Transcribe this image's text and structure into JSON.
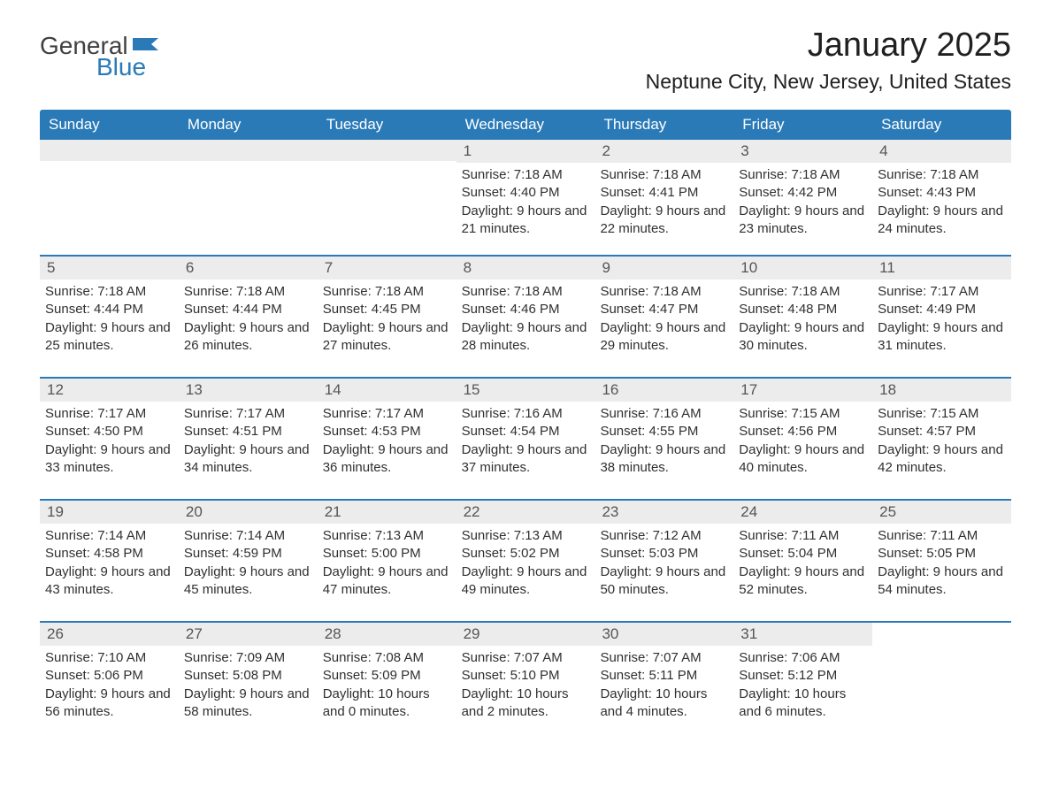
{
  "brand": {
    "word1": "General",
    "word2": "Blue",
    "text_color": "#404040",
    "accent_color": "#2a7ab8"
  },
  "title": "January 2025",
  "location": "Neptune City, New Jersey, United States",
  "colors": {
    "header_bg": "#2a7ab8",
    "header_text": "#ffffff",
    "strip_bg": "#ececec",
    "body_text": "#303030",
    "page_bg": "#ffffff",
    "rule": "#2a7ab8"
  },
  "typography": {
    "title_fontsize": 38,
    "location_fontsize": 23,
    "dayheader_fontsize": 17,
    "daynum_fontsize": 17,
    "detail_fontsize": 15
  },
  "calendar": {
    "day_headers": [
      "Sunday",
      "Monday",
      "Tuesday",
      "Wednesday",
      "Thursday",
      "Friday",
      "Saturday"
    ],
    "weeks": [
      [
        null,
        null,
        null,
        {
          "num": "1",
          "sunrise": "Sunrise: 7:18 AM",
          "sunset": "Sunset: 4:40 PM",
          "daylight": "Daylight: 9 hours and 21 minutes."
        },
        {
          "num": "2",
          "sunrise": "Sunrise: 7:18 AM",
          "sunset": "Sunset: 4:41 PM",
          "daylight": "Daylight: 9 hours and 22 minutes."
        },
        {
          "num": "3",
          "sunrise": "Sunrise: 7:18 AM",
          "sunset": "Sunset: 4:42 PM",
          "daylight": "Daylight: 9 hours and 23 minutes."
        },
        {
          "num": "4",
          "sunrise": "Sunrise: 7:18 AM",
          "sunset": "Sunset: 4:43 PM",
          "daylight": "Daylight: 9 hours and 24 minutes."
        }
      ],
      [
        {
          "num": "5",
          "sunrise": "Sunrise: 7:18 AM",
          "sunset": "Sunset: 4:44 PM",
          "daylight": "Daylight: 9 hours and 25 minutes."
        },
        {
          "num": "6",
          "sunrise": "Sunrise: 7:18 AM",
          "sunset": "Sunset: 4:44 PM",
          "daylight": "Daylight: 9 hours and 26 minutes."
        },
        {
          "num": "7",
          "sunrise": "Sunrise: 7:18 AM",
          "sunset": "Sunset: 4:45 PM",
          "daylight": "Daylight: 9 hours and 27 minutes."
        },
        {
          "num": "8",
          "sunrise": "Sunrise: 7:18 AM",
          "sunset": "Sunset: 4:46 PM",
          "daylight": "Daylight: 9 hours and 28 minutes."
        },
        {
          "num": "9",
          "sunrise": "Sunrise: 7:18 AM",
          "sunset": "Sunset: 4:47 PM",
          "daylight": "Daylight: 9 hours and 29 minutes."
        },
        {
          "num": "10",
          "sunrise": "Sunrise: 7:18 AM",
          "sunset": "Sunset: 4:48 PM",
          "daylight": "Daylight: 9 hours and 30 minutes."
        },
        {
          "num": "11",
          "sunrise": "Sunrise: 7:17 AM",
          "sunset": "Sunset: 4:49 PM",
          "daylight": "Daylight: 9 hours and 31 minutes."
        }
      ],
      [
        {
          "num": "12",
          "sunrise": "Sunrise: 7:17 AM",
          "sunset": "Sunset: 4:50 PM",
          "daylight": "Daylight: 9 hours and 33 minutes."
        },
        {
          "num": "13",
          "sunrise": "Sunrise: 7:17 AM",
          "sunset": "Sunset: 4:51 PM",
          "daylight": "Daylight: 9 hours and 34 minutes."
        },
        {
          "num": "14",
          "sunrise": "Sunrise: 7:17 AM",
          "sunset": "Sunset: 4:53 PM",
          "daylight": "Daylight: 9 hours and 36 minutes."
        },
        {
          "num": "15",
          "sunrise": "Sunrise: 7:16 AM",
          "sunset": "Sunset: 4:54 PM",
          "daylight": "Daylight: 9 hours and 37 minutes."
        },
        {
          "num": "16",
          "sunrise": "Sunrise: 7:16 AM",
          "sunset": "Sunset: 4:55 PM",
          "daylight": "Daylight: 9 hours and 38 minutes."
        },
        {
          "num": "17",
          "sunrise": "Sunrise: 7:15 AM",
          "sunset": "Sunset: 4:56 PM",
          "daylight": "Daylight: 9 hours and 40 minutes."
        },
        {
          "num": "18",
          "sunrise": "Sunrise: 7:15 AM",
          "sunset": "Sunset: 4:57 PM",
          "daylight": "Daylight: 9 hours and 42 minutes."
        }
      ],
      [
        {
          "num": "19",
          "sunrise": "Sunrise: 7:14 AM",
          "sunset": "Sunset: 4:58 PM",
          "daylight": "Daylight: 9 hours and 43 minutes."
        },
        {
          "num": "20",
          "sunrise": "Sunrise: 7:14 AM",
          "sunset": "Sunset: 4:59 PM",
          "daylight": "Daylight: 9 hours and 45 minutes."
        },
        {
          "num": "21",
          "sunrise": "Sunrise: 7:13 AM",
          "sunset": "Sunset: 5:00 PM",
          "daylight": "Daylight: 9 hours and 47 minutes."
        },
        {
          "num": "22",
          "sunrise": "Sunrise: 7:13 AM",
          "sunset": "Sunset: 5:02 PM",
          "daylight": "Daylight: 9 hours and 49 minutes."
        },
        {
          "num": "23",
          "sunrise": "Sunrise: 7:12 AM",
          "sunset": "Sunset: 5:03 PM",
          "daylight": "Daylight: 9 hours and 50 minutes."
        },
        {
          "num": "24",
          "sunrise": "Sunrise: 7:11 AM",
          "sunset": "Sunset: 5:04 PM",
          "daylight": "Daylight: 9 hours and 52 minutes."
        },
        {
          "num": "25",
          "sunrise": "Sunrise: 7:11 AM",
          "sunset": "Sunset: 5:05 PM",
          "daylight": "Daylight: 9 hours and 54 minutes."
        }
      ],
      [
        {
          "num": "26",
          "sunrise": "Sunrise: 7:10 AM",
          "sunset": "Sunset: 5:06 PM",
          "daylight": "Daylight: 9 hours and 56 minutes."
        },
        {
          "num": "27",
          "sunrise": "Sunrise: 7:09 AM",
          "sunset": "Sunset: 5:08 PM",
          "daylight": "Daylight: 9 hours and 58 minutes."
        },
        {
          "num": "28",
          "sunrise": "Sunrise: 7:08 AM",
          "sunset": "Sunset: 5:09 PM",
          "daylight": "Daylight: 10 hours and 0 minutes."
        },
        {
          "num": "29",
          "sunrise": "Sunrise: 7:07 AM",
          "sunset": "Sunset: 5:10 PM",
          "daylight": "Daylight: 10 hours and 2 minutes."
        },
        {
          "num": "30",
          "sunrise": "Sunrise: 7:07 AM",
          "sunset": "Sunset: 5:11 PM",
          "daylight": "Daylight: 10 hours and 4 minutes."
        },
        {
          "num": "31",
          "sunrise": "Sunrise: 7:06 AM",
          "sunset": "Sunset: 5:12 PM",
          "daylight": "Daylight: 10 hours and 6 minutes."
        },
        null
      ]
    ]
  }
}
